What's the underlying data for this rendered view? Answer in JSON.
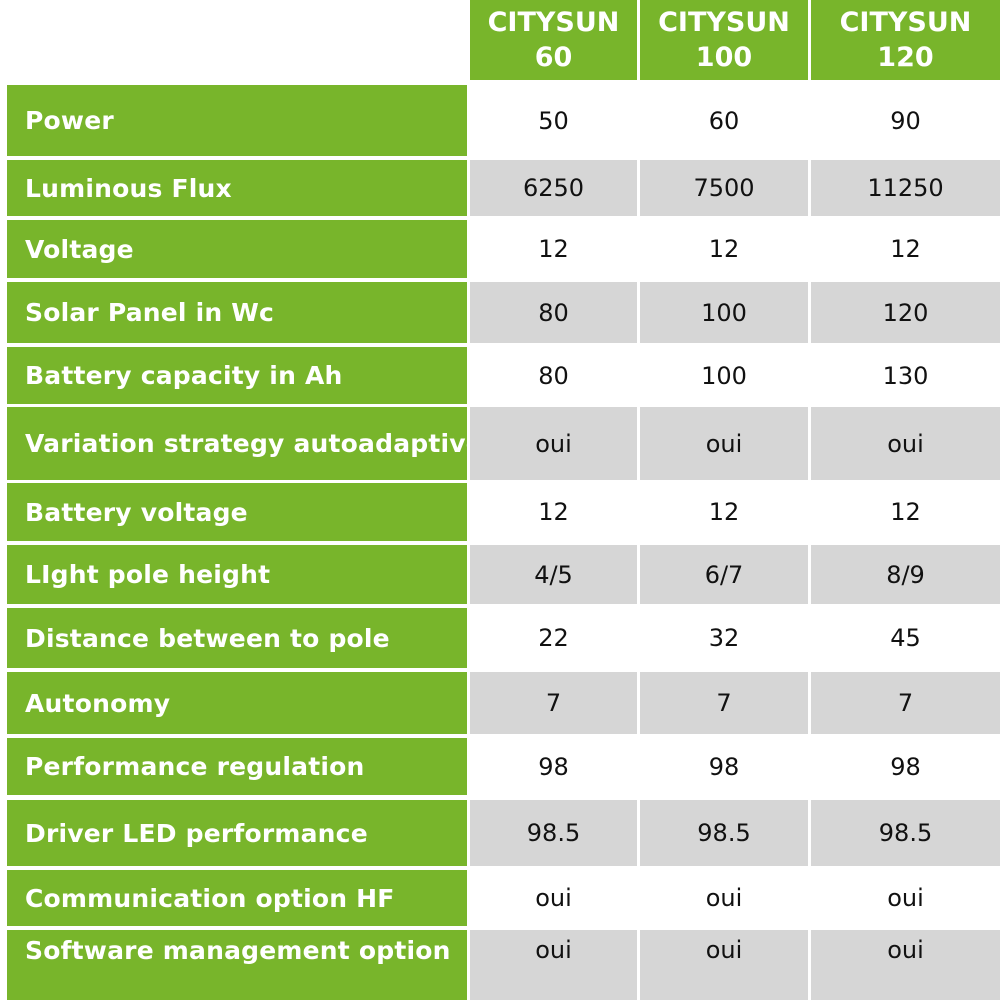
{
  "columns": [
    {
      "line1": "CITYSUN",
      "line2": "60"
    },
    {
      "line1": "CITYSUN",
      "line2": "100"
    },
    {
      "line1": "CITYSUN",
      "line2": "120"
    }
  ],
  "rows": [
    {
      "label": "Power",
      "values": [
        "50",
        "60",
        "90"
      ],
      "shaded": false
    },
    {
      "label": "Luminous Flux",
      "values": [
        "6250",
        "7500",
        "11250"
      ],
      "shaded": true
    },
    {
      "label": "Voltage",
      "values": [
        "12",
        "12",
        "12"
      ],
      "shaded": false
    },
    {
      "label": "Solar Panel in Wc",
      "values": [
        "80",
        "100",
        "120"
      ],
      "shaded": true
    },
    {
      "label": "Battery capacity in Ah",
      "values": [
        "80",
        "100",
        "130"
      ],
      "shaded": false
    },
    {
      "label": "Variation strategy autoadaptive",
      "values": [
        "oui",
        "oui",
        "oui"
      ],
      "shaded": true
    },
    {
      "label": "Battery voltage",
      "values": [
        "12",
        "12",
        "12"
      ],
      "shaded": false
    },
    {
      "label": "LIght pole height",
      "values": [
        "4/5",
        "6/7",
        "8/9"
      ],
      "shaded": true
    },
    {
      "label": "Distance between to pole",
      "values": [
        "22",
        "32",
        "45"
      ],
      "shaded": false
    },
    {
      "label": "Autonomy",
      "values": [
        "7",
        "7",
        "7"
      ],
      "shaded": true
    },
    {
      "label": "Performance regulation",
      "values": [
        "98",
        "98",
        "98"
      ],
      "shaded": false
    },
    {
      "label": "Driver LED performance",
      "values": [
        "98.5",
        "98.5",
        "98.5"
      ],
      "shaded": true
    },
    {
      "label": "Communication option HF",
      "values": [
        "oui",
        "oui",
        "oui"
      ],
      "shaded": false
    },
    {
      "label": "Software management option",
      "values": [
        "oui",
        "oui",
        "oui"
      ],
      "shaded": true
    }
  ],
  "colors": {
    "green": "#78b52b",
    "gray": "#d6d6d6",
    "white": "#ffffff"
  }
}
